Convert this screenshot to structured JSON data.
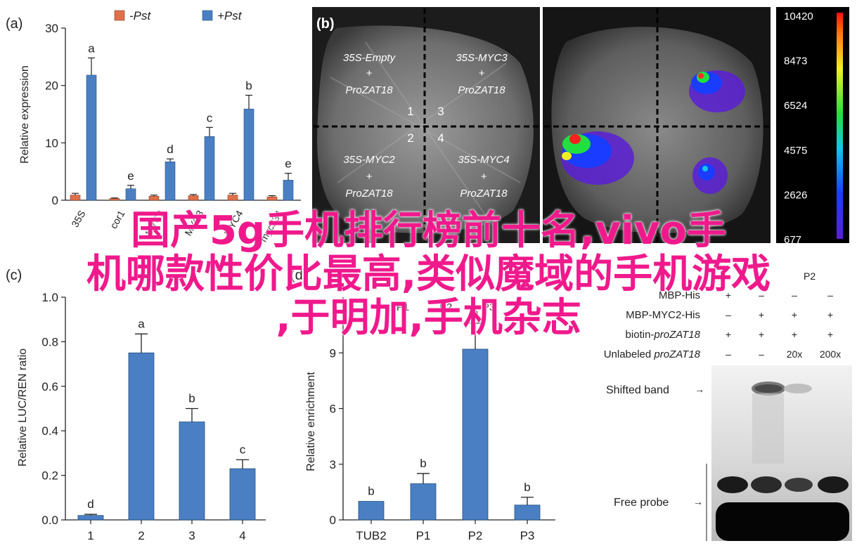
{
  "overlay": {
    "line1": "国产5g手机排行榜前十名,vivo手",
    "line2": "机哪款性价比最高,类似魔域的手机游戏",
    "line3": ",于明加,手机杂志"
  },
  "panel_a": {
    "label": "(a)",
    "legend": [
      "-Pst",
      "+Pst"
    ],
    "colors": {
      "minus": "#e0704a",
      "plus": "#4a7fc4"
    },
    "xlabels": [
      "35S",
      "cor1",
      "MYC2",
      "MYC3",
      "MYC4",
      "myc234"
    ],
    "letters": [
      "a",
      "e",
      "d",
      "c",
      "b",
      "e"
    ]
  },
  "panel_b": {
    "label": "(b)",
    "quad_top_left": [
      "35S-Empty",
      "+",
      "ProZAT18"
    ],
    "quad_top_right": [
      "35S-MYC3",
      "+",
      "ProZAT18"
    ],
    "quad_bottom_left": [
      "35S-MYC2",
      "+",
      "ProZAT18"
    ],
    "quad_bottom_right": [
      "35S-MYC4",
      "+",
      "ProZAT18"
    ],
    "nums": [
      "1",
      "3",
      "2",
      "4"
    ],
    "colorbar_ticks": [
      "10420",
      "8473",
      "6524",
      "4575",
      "2626",
      "677"
    ]
  },
  "panel_c": {
    "label": "(c)",
    "letters": [
      "d",
      "a",
      "b",
      "c"
    ]
  },
  "panel_d": {
    "label": "(d)",
    "tops": [
      "P1",
      "P2",
      "P3"
    ],
    "letters": [
      "b",
      "b",
      "a",
      "b"
    ]
  },
  "panel_e": {
    "header_partial": "P2",
    "rows": [
      {
        "label": "MBP-His",
        "vals": [
          "+",
          "–",
          "–",
          "–"
        ]
      },
      {
        "label": "MBP-MYC2-His",
        "vals": [
          "–",
          "+",
          "+",
          "+"
        ]
      },
      {
        "label": "biotin-proZAT18",
        "vals": [
          "+",
          "+",
          "+",
          "+"
        ]
      },
      {
        "label": "Unlabeled proZAT18",
        "vals": [
          "–",
          "–",
          "20x",
          "200x"
        ]
      }
    ],
    "shifted": "Shifted band",
    "free": "Free probe"
  },
  "chart_data": [
    {
      "type": "bar",
      "title": "",
      "ylabel": "Relative expression",
      "categories": [
        "35S",
        "cor1",
        "MYC2",
        "MYC3",
        "MYC4",
        "myc234"
      ],
      "series": [
        {
          "name": "-Pst",
          "values": [
            0.9,
            0.3,
            0.7,
            0.8,
            0.9,
            0.6
          ],
          "errors": [
            0.3,
            0.1,
            0.2,
            0.2,
            0.3,
            0.2
          ]
        },
        {
          "name": "+Pst",
          "values": [
            21.8,
            2.0,
            6.7,
            11.1,
            15.9,
            3.5
          ],
          "errors": [
            3.0,
            0.6,
            0.5,
            1.6,
            2.4,
            1.2
          ]
        }
      ],
      "ylim": [
        0,
        30
      ],
      "yticks": [
        0,
        10,
        20,
        30
      ],
      "significance": [
        "a",
        "e",
        "d",
        "c",
        "b",
        "e"
      ]
    },
    {
      "type": "bar",
      "title": "",
      "ylabel": "Relative LUC/REN ratio",
      "categories": [
        "1",
        "2",
        "3",
        "4"
      ],
      "values": [
        0.02,
        0.75,
        0.44,
        0.23
      ],
      "errors": [
        0.005,
        0.085,
        0.06,
        0.04
      ],
      "ylim": [
        0,
        1.0
      ],
      "yticks": [
        "0.0",
        "0.2",
        "0.4",
        "0.6",
        "0.8",
        "1.0"
      ],
      "significance": [
        "d",
        "a",
        "b",
        "c"
      ]
    },
    {
      "type": "bar",
      "title": "",
      "ylabel": "Relative enrichment",
      "categories": [
        "TUB2",
        "P1",
        "P2",
        "P3"
      ],
      "values": [
        1.0,
        1.95,
        9.2,
        0.8
      ],
      "errors": [
        0.0,
        0.55,
        1.4,
        0.42
      ],
      "ylim": [
        0,
        12
      ],
      "yticks": [
        0,
        3,
        6,
        9
      ],
      "significance": [
        "b",
        "b",
        "a",
        "b"
      ]
    }
  ]
}
